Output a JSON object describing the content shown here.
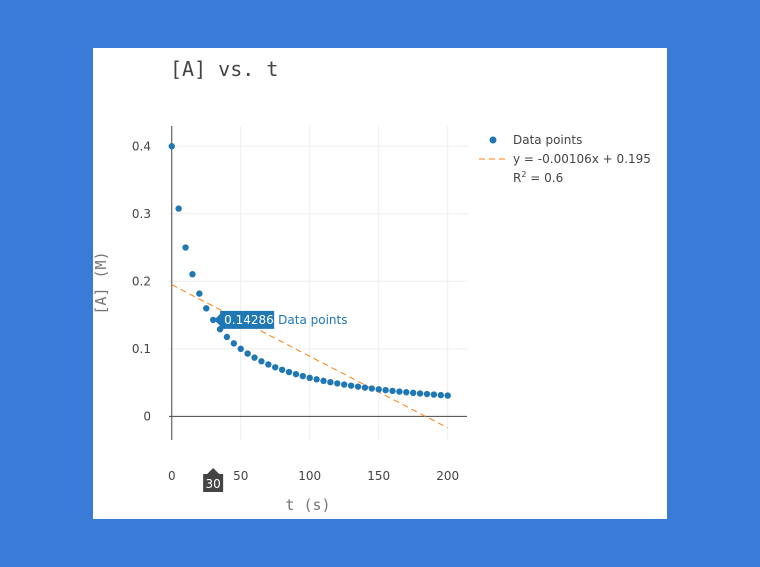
{
  "chart_data": {
    "type": "scatter",
    "title": "[A] vs. t",
    "xlabel": "t (s)",
    "ylabel": "[A] (M)",
    "xlim": [
      -2,
      214
    ],
    "ylim": [
      -0.035,
      0.43
    ],
    "x_ticks": [
      0,
      50,
      100,
      150,
      200
    ],
    "y_ticks": [
      0,
      0.1,
      0.2,
      0.3,
      0.4
    ],
    "y_tick_labels": [
      "0",
      "0.1",
      "0.2",
      "0.3",
      "0.4"
    ],
    "grid": true,
    "legend_position": "right",
    "series": [
      {
        "name": "Data points",
        "kind": "markers",
        "color": "#1f77b4",
        "x": [
          0,
          5,
          10,
          15,
          20,
          25,
          30,
          35,
          40,
          45,
          50,
          55,
          60,
          65,
          70,
          75,
          80,
          85,
          90,
          95,
          100,
          105,
          110,
          115,
          120,
          125,
          130,
          135,
          140,
          145,
          150,
          155,
          160,
          165,
          170,
          175,
          180,
          185,
          190,
          195,
          200
        ],
        "y": [
          0.4,
          0.3077,
          0.25,
          0.2105,
          0.1818,
          0.16,
          0.14286,
          0.129,
          0.1176,
          0.1081,
          0.1,
          0.093,
          0.087,
          0.0816,
          0.0769,
          0.0727,
          0.069,
          0.0656,
          0.0625,
          0.0597,
          0.0571,
          0.0548,
          0.0526,
          0.0506,
          0.0488,
          0.0471,
          0.0455,
          0.044,
          0.0426,
          0.0412,
          0.04,
          0.0388,
          0.0377,
          0.0367,
          0.0357,
          0.0348,
          0.0339,
          0.0331,
          0.0323,
          0.0315,
          0.0308
        ]
      },
      {
        "name": "y = -0.00106x + 0.195",
        "kind": "line",
        "dash": "dash",
        "color": "#ff7f0e",
        "slope": -0.00106,
        "intercept": 0.195,
        "x": [
          0,
          200
        ],
        "y": [
          0.195,
          -0.017
        ]
      }
    ],
    "legend": {
      "points_label": "Data points",
      "fit_label": "y = -0.00106x + 0.195",
      "r2_label": "R",
      "r2_sup": "2",
      "r2_value": " = 0.6"
    },
    "hover": {
      "x_label": "30",
      "x": 30,
      "y": 0.14286,
      "value_label": "0.14286",
      "series_label": "Data points"
    }
  }
}
